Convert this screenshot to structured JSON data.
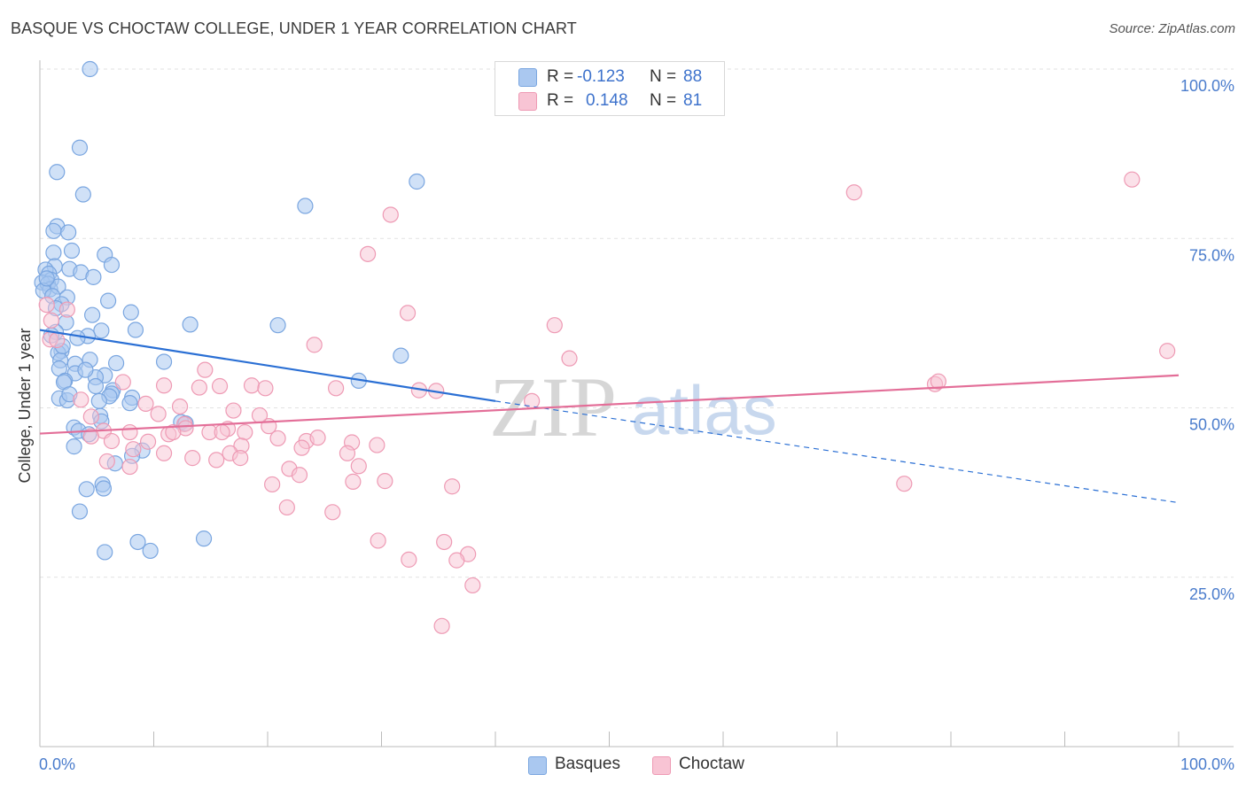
{
  "title": "BASQUE VS CHOCTAW COLLEGE, UNDER 1 YEAR CORRELATION CHART",
  "source": "Source: ZipAtlas.com",
  "watermark": {
    "zip": "ZIP",
    "atlas": "atlas"
  },
  "legend": {
    "r_label": "R =",
    "n_label": "N =",
    "basques": {
      "r": "-0.123",
      "n": "88"
    },
    "choctaw": {
      "r": "0.148",
      "n": "81"
    }
  },
  "colors": {
    "basques_fill": "#aac8f0",
    "basques_stroke": "#7aa6e0",
    "basques_line": "#2a6fd4",
    "choctaw_fill": "#f8c4d4",
    "choctaw_stroke": "#ee9ab4",
    "choctaw_line": "#e36e98",
    "grid": "#e2e2e2",
    "tick_text": "#4a7ccc"
  },
  "chart_data": {
    "type": "scatter",
    "title": "BASQUE VS CHOCTAW COLLEGE, UNDER 1 YEAR CORRELATION CHART",
    "xlabel": "",
    "ylabel": "College, Under 1 year",
    "xlim": [
      0,
      100
    ],
    "ylim": [
      0,
      100
    ],
    "x_tick_labels": [
      "0.0%",
      "100.0%"
    ],
    "y_tick_labels": [
      "100.0%",
      "75.0%",
      "50.0%",
      "25.0%"
    ],
    "y_ticks": [
      100,
      75,
      50,
      25
    ],
    "grid": true,
    "legend_position": "bottom",
    "series": [
      {
        "name": "Basques",
        "r": -0.123,
        "n": 88,
        "trend": {
          "x": [
            0,
            40,
            100
          ],
          "y": [
            61.5,
            51.0,
            36.0
          ],
          "solid_until": 40
        },
        "points": [
          [
            4.4,
            100
          ],
          [
            3.5,
            88.4
          ],
          [
            1.5,
            84.8
          ],
          [
            3.8,
            81.5
          ],
          [
            33.1,
            83.4
          ],
          [
            23.3,
            79.8
          ],
          [
            1.5,
            76.8
          ],
          [
            1.2,
            76.1
          ],
          [
            2.5,
            75.9
          ],
          [
            2.8,
            73.2
          ],
          [
            1.2,
            72.9
          ],
          [
            5.7,
            72.6
          ],
          [
            6.3,
            71.1
          ],
          [
            1.3,
            70.9
          ],
          [
            2.6,
            70.5
          ],
          [
            0.5,
            70.4
          ],
          [
            3.6,
            70.0
          ],
          [
            0.8,
            69.8
          ],
          [
            4.7,
            69.3
          ],
          [
            1.0,
            68.9
          ],
          [
            0.2,
            68.5
          ],
          [
            0.7,
            68.3
          ],
          [
            0.9,
            67.5
          ],
          [
            1.6,
            67.9
          ],
          [
            0.3,
            67.3
          ],
          [
            1.1,
            66.5
          ],
          [
            2.4,
            66.3
          ],
          [
            6.0,
            65.8
          ],
          [
            1.9,
            65.3
          ],
          [
            8.0,
            64.1
          ],
          [
            4.6,
            63.7
          ],
          [
            2.3,
            62.6
          ],
          [
            13.2,
            62.3
          ],
          [
            20.9,
            62.2
          ],
          [
            1.4,
            61.2
          ],
          [
            8.4,
            61.5
          ],
          [
            5.4,
            61.4
          ],
          [
            4.2,
            60.6
          ],
          [
            1.9,
            58.4
          ],
          [
            1.6,
            58.1
          ],
          [
            4.4,
            57.1
          ],
          [
            1.8,
            57.0
          ],
          [
            3.1,
            56.5
          ],
          [
            6.7,
            56.6
          ],
          [
            10.9,
            56.8
          ],
          [
            31.7,
            57.7
          ],
          [
            1.7,
            55.8
          ],
          [
            3.1,
            55.1
          ],
          [
            5.7,
            54.8
          ],
          [
            4.9,
            54.5
          ],
          [
            2.2,
            54.0
          ],
          [
            28.0,
            54.0
          ],
          [
            4.9,
            53.2
          ],
          [
            6.4,
            52.6
          ],
          [
            6.3,
            52.1
          ],
          [
            1.7,
            51.4
          ],
          [
            6.1,
            51.7
          ],
          [
            8.1,
            51.5
          ],
          [
            5.2,
            51.0
          ],
          [
            2.4,
            51.1
          ],
          [
            5.3,
            48.8
          ],
          [
            5.4,
            48.0
          ],
          [
            12.4,
            47.9
          ],
          [
            3.0,
            47.1
          ],
          [
            3.4,
            46.6
          ],
          [
            12.8,
            47.7
          ],
          [
            4.3,
            46.1
          ],
          [
            3.0,
            44.3
          ],
          [
            9.0,
            43.7
          ],
          [
            8.1,
            42.9
          ],
          [
            6.6,
            41.8
          ],
          [
            5.5,
            38.7
          ],
          [
            5.6,
            38.1
          ],
          [
            4.1,
            38.0
          ],
          [
            3.5,
            34.7
          ],
          [
            8.6,
            30.2
          ],
          [
            9.7,
            28.9
          ],
          [
            5.7,
            28.7
          ],
          [
            14.4,
            30.7
          ],
          [
            1.0,
            60.7
          ],
          [
            2.1,
            53.8
          ],
          [
            7.9,
            50.7
          ],
          [
            0.6,
            69.1
          ],
          [
            1.4,
            64.7
          ],
          [
            3.3,
            60.3
          ],
          [
            2.0,
            59.1
          ],
          [
            4.0,
            55.6
          ],
          [
            2.6,
            52.0
          ]
        ]
      },
      {
        "name": "Choctaw",
        "r": 0.148,
        "n": 81,
        "trend": {
          "x": [
            0,
            100
          ],
          "y": [
            46.2,
            54.8
          ]
        },
        "points": [
          [
            95.9,
            83.7
          ],
          [
            71.5,
            81.8
          ],
          [
            30.8,
            78.5
          ],
          [
            28.8,
            72.7
          ],
          [
            32.3,
            64.0
          ],
          [
            45.2,
            62.2
          ],
          [
            0.6,
            65.2
          ],
          [
            1.0,
            62.9
          ],
          [
            0.9,
            60.1
          ],
          [
            1.5,
            60.0
          ],
          [
            24.1,
            59.3
          ],
          [
            46.5,
            57.3
          ],
          [
            99.0,
            58.4
          ],
          [
            14.5,
            55.6
          ],
          [
            14.0,
            53.0
          ],
          [
            10.9,
            53.3
          ],
          [
            15.8,
            53.2
          ],
          [
            18.6,
            53.3
          ],
          [
            19.8,
            52.9
          ],
          [
            26.0,
            52.9
          ],
          [
            33.3,
            52.6
          ],
          [
            34.8,
            52.5
          ],
          [
            43.2,
            51.0
          ],
          [
            78.6,
            53.5
          ],
          [
            78.9,
            53.9
          ],
          [
            7.3,
            53.8
          ],
          [
            9.3,
            50.6
          ],
          [
            10.4,
            49.1
          ],
          [
            12.3,
            50.2
          ],
          [
            17.0,
            49.6
          ],
          [
            4.5,
            48.7
          ],
          [
            12.7,
            47.6
          ],
          [
            14.9,
            46.4
          ],
          [
            16.5,
            46.9
          ],
          [
            18.0,
            46.4
          ],
          [
            12.8,
            47.0
          ],
          [
            20.1,
            47.3
          ],
          [
            5.6,
            46.6
          ],
          [
            7.9,
            46.4
          ],
          [
            11.3,
            46.1
          ],
          [
            11.7,
            46.4
          ],
          [
            4.5,
            45.8
          ],
          [
            6.3,
            45.1
          ],
          [
            16.0,
            46.4
          ],
          [
            20.9,
            45.5
          ],
          [
            23.4,
            45.1
          ],
          [
            24.4,
            45.6
          ],
          [
            27.4,
            44.9
          ],
          [
            29.6,
            44.5
          ],
          [
            17.7,
            44.4
          ],
          [
            23.0,
            44.1
          ],
          [
            16.7,
            43.3
          ],
          [
            8.2,
            43.9
          ],
          [
            10.9,
            43.3
          ],
          [
            13.4,
            42.6
          ],
          [
            15.5,
            42.3
          ],
          [
            17.6,
            42.6
          ],
          [
            27.0,
            43.3
          ],
          [
            5.9,
            42.1
          ],
          [
            7.9,
            41.3
          ],
          [
            21.9,
            41.0
          ],
          [
            28.0,
            41.4
          ],
          [
            22.8,
            40.1
          ],
          [
            30.3,
            39.2
          ],
          [
            27.5,
            39.1
          ],
          [
            20.4,
            38.7
          ],
          [
            36.2,
            38.4
          ],
          [
            75.9,
            38.8
          ],
          [
            21.7,
            35.3
          ],
          [
            25.7,
            34.6
          ],
          [
            29.7,
            30.4
          ],
          [
            35.5,
            30.2
          ],
          [
            32.4,
            27.6
          ],
          [
            37.6,
            28.4
          ],
          [
            36.6,
            27.5
          ],
          [
            38.0,
            23.8
          ],
          [
            35.3,
            17.8
          ],
          [
            2.4,
            64.5
          ],
          [
            3.6,
            51.2
          ],
          [
            9.5,
            45.0
          ],
          [
            19.3,
            48.9
          ]
        ]
      }
    ]
  }
}
